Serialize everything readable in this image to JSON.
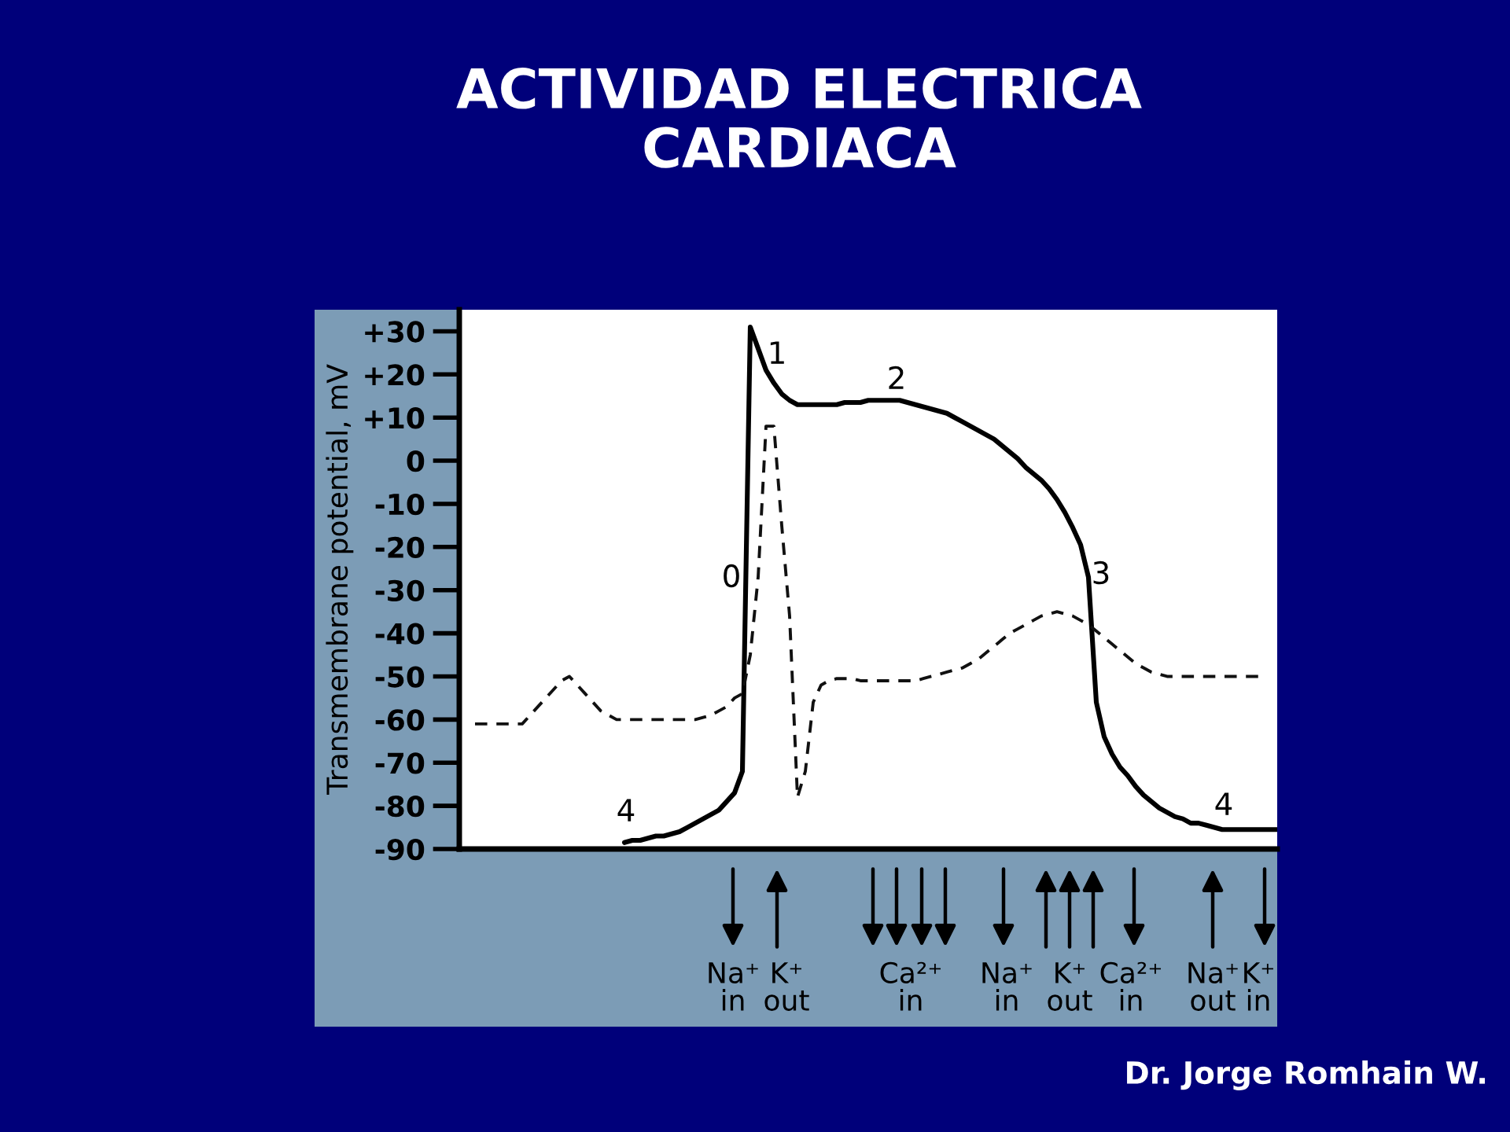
{
  "chart_data": {
    "type": "line",
    "title": "ACTIVIDAD ELECTRICA\nCARDIACA",
    "ylabel": "Transmembrane potential, mV",
    "categories": [
      null,
      null,
      null,
      null,
      null,
      null,
      null,
      null,
      null,
      null,
      null,
      null,
      null,
      null,
      null,
      null,
      null,
      null,
      null,
      null,
      null,
      null,
      null,
      null,
      null,
      null,
      null,
      null,
      null,
      null,
      null,
      null,
      null,
      null,
      null,
      null,
      null,
      null,
      null,
      null,
      null,
      null,
      null,
      null,
      null,
      null,
      null,
      null,
      null,
      null,
      null,
      null,
      null,
      null,
      null,
      null,
      null,
      null,
      null,
      null,
      null,
      null,
      null,
      null,
      null,
      null,
      null,
      null,
      null,
      null,
      null,
      null,
      null,
      null,
      null,
      null,
      null,
      null,
      null,
      null,
      null,
      null,
      null,
      null,
      null,
      null,
      null,
      null,
      null,
      null,
      null,
      null,
      null,
      null,
      null,
      null,
      null,
      null,
      null,
      null,
      null,
      null,
      null,
      null,
      null
    ],
    "series": [
      {
        "color": "#000000",
        "line_style": "solid",
        "values": [
          null,
          null,
          null,
          null,
          null,
          null,
          null,
          null,
          null,
          null,
          null,
          null,
          null,
          null,
          null,
          null,
          null,
          null,
          null,
          null,
          null,
          -88.5,
          -88,
          -88,
          -87.5,
          -87,
          -87,
          -86.5,
          -86,
          -85,
          -84,
          -83,
          -82,
          -81,
          -79,
          -77,
          -72,
          31,
          26,
          21,
          18,
          15.5,
          14,
          13,
          13,
          13,
          13,
          13,
          13,
          13.5,
          13.5,
          13.5,
          14,
          14,
          14,
          14,
          14,
          13.5,
          13,
          12.5,
          12,
          11.5,
          11,
          10,
          9,
          8,
          7,
          6,
          5,
          3.5,
          2,
          0.5,
          -1.5,
          -3,
          -4.5,
          -6.5,
          -9,
          -12,
          -15.5,
          -19.5,
          -27,
          -56,
          -64,
          -68,
          -71,
          -73,
          -75.5,
          -77.5,
          -79,
          -80.5,
          -81.5,
          -82.5,
          -83,
          -84,
          -84,
          -84.5,
          -85,
          -85.5,
          -85.5,
          -85.5,
          -85.5,
          -85.5,
          -85.5,
          -85.5,
          -85.5
        ]
      },
      {
        "color": "#111111",
        "line_style": "dashed",
        "values": [
          null,
          null,
          -61,
          -61,
          -61,
          -61,
          -61,
          -61,
          -61,
          -59,
          -57,
          -55,
          -53,
          -51,
          -50,
          -52,
          -54,
          -56,
          -58,
          -59,
          -60,
          -60,
          -60,
          -60,
          -60,
          -60,
          -60,
          -60,
          -60,
          -60,
          -60,
          -59.5,
          -59,
          -58,
          -57,
          -55,
          -54,
          -45,
          -27,
          8,
          8,
          -15,
          -36,
          -78,
          -72,
          -56,
          -52,
          -51,
          -50.5,
          -50.5,
          -50.5,
          -51,
          -51,
          -51,
          -51,
          -51,
          -51,
          -51,
          -51,
          -50.5,
          -50,
          -49.5,
          -49,
          -48.5,
          -48,
          -47,
          -46,
          -44.5,
          -43,
          -41.5,
          -40,
          -39,
          -38,
          -37,
          -36,
          -35.5,
          -35,
          -35.5,
          -36,
          -37,
          -38,
          -39.5,
          -41,
          -42.5,
          -44,
          -45.5,
          -47,
          -48,
          -49,
          -49.5,
          -50,
          -50,
          -50,
          -50,
          -50,
          -50,
          -50,
          -50,
          -50,
          -50,
          -50,
          -50,
          -50,
          null,
          null
        ]
      }
    ],
    "ylim": [
      -90,
      35
    ],
    "yticks": [
      {
        "value": -90,
        "label": "-90"
      },
      {
        "value": -80,
        "label": "-80"
      },
      {
        "value": -70,
        "label": "-70"
      },
      {
        "value": -60,
        "label": "-60"
      },
      {
        "value": -50,
        "label": "-50"
      },
      {
        "value": -40,
        "label": "-40"
      },
      {
        "value": -30,
        "label": "-30"
      },
      {
        "value": -20,
        "label": "-20"
      },
      {
        "value": -10,
        "label": "-10"
      },
      0,
      {
        "value": 10,
        "label": "+10"
      },
      {
        "value": 20,
        "label": "+20"
      },
      {
        "value": 30,
        "label": "+30"
      }
    ],
    "tick_labels": "y",
    "grid": false,
    "annotations": [
      "0",
      "1",
      "2",
      "3",
      "4",
      "4",
      "Na⁺\nin",
      "K⁺\nout",
      "Ca²⁺\nin",
      "Na⁺\nin",
      "K⁺\nout",
      "Ca²⁺\nin",
      "Na⁺\nout",
      "K⁺\nin",
      "Dr. Jorge Romhain W."
    ]
  }
}
